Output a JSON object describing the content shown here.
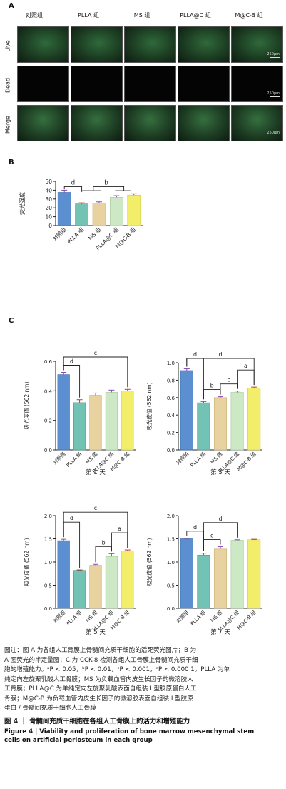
{
  "panel_a": {
    "letter": "A",
    "groups": [
      "对照组",
      "PLLA 组",
      "MS 组",
      "PLLA@C 组",
      "M@C-B 组"
    ],
    "rows": [
      "Live",
      "Dead",
      "Merge"
    ],
    "scale_label": "250μm"
  },
  "panel_b": {
    "letter": "B"
  },
  "panel_c": {
    "letter": "C"
  },
  "chart_data": [
    {
      "id": "B",
      "type": "bar",
      "categories": [
        "对照组",
        "PLLA 组",
        "MS 组",
        "PLLA@C 组",
        "M@C-B 组"
      ],
      "values": [
        37.5,
        24.5,
        25.5,
        32,
        34.5
      ],
      "errors": [
        2.5,
        1.2,
        1.3,
        1.8,
        1.5
      ],
      "ylabel": "荧光强度",
      "ylim": [
        0,
        50
      ],
      "yticks": [
        0,
        10,
        20,
        30,
        40,
        50
      ],
      "title": "",
      "annotations": [
        {
          "label": "d",
          "from": 0,
          "to": 1
        },
        {
          "label": "b",
          "from": 1,
          "to": 3
        }
      ]
    },
    {
      "id": "C1",
      "type": "bar",
      "categories": [
        "对照组",
        "PLLA 组",
        "MS 组",
        "PLLA@C 组",
        "M@C-B 组"
      ],
      "values": [
        0.51,
        0.32,
        0.37,
        0.39,
        0.4
      ],
      "errors": [
        0.015,
        0.02,
        0.015,
        0.015,
        0.01
      ],
      "ylabel": "吸光度值 (562 nm)",
      "ylim": [
        0,
        0.6
      ],
      "yticks": [
        0.0,
        0.2,
        0.4,
        0.6
      ],
      "title": "第 1 天",
      "annotations": [
        {
          "label": "c",
          "from": 0,
          "to": 4,
          "level": 2
        },
        {
          "label": "d",
          "from": 0,
          "to": 1,
          "level": 1
        }
      ]
    },
    {
      "id": "C3",
      "type": "bar",
      "categories": [
        "对照组",
        "PLLA 组",
        "MS 组",
        "PLLA@C 组",
        "M@C-B 组"
      ],
      "values": [
        0.91,
        0.54,
        0.6,
        0.66,
        0.71
      ],
      "errors": [
        0.02,
        0.015,
        0.01,
        0.015,
        0.01
      ],
      "ylabel": "吸光度值 (562 nm)",
      "ylim": [
        0,
        1.0
      ],
      "yticks": [
        0.0,
        0.2,
        0.4,
        0.6,
        0.8,
        1.0
      ],
      "title": "第 3 天",
      "annotations": [
        {
          "label": "d",
          "from": 0,
          "to": 4,
          "level": 3
        },
        {
          "label": "d",
          "from": 0,
          "to": 1,
          "level": 2
        },
        {
          "label": "b",
          "from": 1,
          "to": 2,
          "level": 1
        },
        {
          "label": "b",
          "from": 2,
          "to": 3,
          "level": 1
        },
        {
          "label": "a",
          "from": 3,
          "to": 4,
          "level": 2
        }
      ]
    },
    {
      "id": "C5",
      "type": "bar",
      "categories": [
        "对照组",
        "PLLA 组",
        "MS 组",
        "PLLA@C 组",
        "M@C-B 组"
      ],
      "values": [
        1.46,
        0.82,
        0.93,
        1.12,
        1.24
      ],
      "errors": [
        0.03,
        0.01,
        0.02,
        0.06,
        0.02
      ],
      "ylabel": "吸光度值 (562 nm)",
      "ylim": [
        0,
        2.0
      ],
      "yticks": [
        0.0,
        0.5,
        1.0,
        1.5,
        2.0
      ],
      "title": "第 5 天",
      "annotations": [
        {
          "label": "c",
          "from": 0,
          "to": 4,
          "level": 3
        },
        {
          "label": "d",
          "from": 0,
          "to": 1,
          "level": 2
        },
        {
          "label": "b",
          "from": 2,
          "to": 3,
          "level": 1
        },
        {
          "label": "a",
          "from": 3,
          "to": 4,
          "level": 2
        }
      ]
    },
    {
      "id": "C7",
      "type": "bar",
      "categories": [
        "对照组",
        "PLLA 组",
        "MS 组",
        "PLLA@C 组",
        "M@C-B 组"
      ],
      "values": [
        1.5,
        1.15,
        1.28,
        1.47,
        1.48
      ],
      "errors": [
        0.01,
        0.04,
        0.05,
        0.01,
        0.01
      ],
      "ylabel": "吸光度值 (562 nm)",
      "ylim": [
        0,
        2.0
      ],
      "yticks": [
        0.0,
        0.5,
        1.0,
        1.5,
        2.0
      ],
      "title": "第 7 天",
      "annotations": [
        {
          "label": "d",
          "from": 0,
          "to": 1,
          "level": 1
        },
        {
          "label": "c",
          "from": 1,
          "to": 2,
          "level": 1
        },
        {
          "label": "d",
          "from": 1,
          "to": 3,
          "level": 2
        }
      ]
    }
  ],
  "caption": {
    "lines": [
      "图注：图 A 为各组人工骨膜上骨髓间充质干细胞的活死荧光图片；B 为",
      "A 图荧光的半定量图；C 为 CCK-8 检测各组人工骨膜上骨髓间充质干细",
      "胞的增殖能力。ᵃP < 0.05，ᵇP < 0.01，ᶜP < 0.001，ᵈP < 0.000 1。PLLA 为单",
      "纯定向左旋聚乳酸人工骨膜；MS 为负载血管内皮生长因子的微溶胶人",
      "工骨膜；PLLA@C 为单纯定向左旋聚乳酸表面自组装 I 型胶原蛋白人工",
      "骨膜；M@C-B 为负载血管内皮生长因子的微溶胶表面自组装 I 型胶原",
      "蛋白 / 骨髓间充质干细胞人工骨膜"
    ],
    "figure_title_cn": "图 4 ｜ 骨髓间充质干细胞在各组人工骨膜上的活力和增殖能力",
    "figure_title_en": "Figure 4 | Viability and proliferation of bone marrow mesenchymal stem cells on artificial periosteum in each group"
  },
  "colors": {
    "bars": [
      "#5b8fd0",
      "#72c3b3",
      "#e8d3a0",
      "#cce8c4",
      "#f3ee6a"
    ],
    "bar_edges": [
      "#3a6aa8",
      "#4c9c8c",
      "#c4ae78",
      "#a6c89f",
      "#cfc640"
    ],
    "errors": [
      "#8a4bb0",
      "#c0392b",
      "#8a4bb0",
      "#8a4bb0",
      "#c0392b"
    ]
  }
}
